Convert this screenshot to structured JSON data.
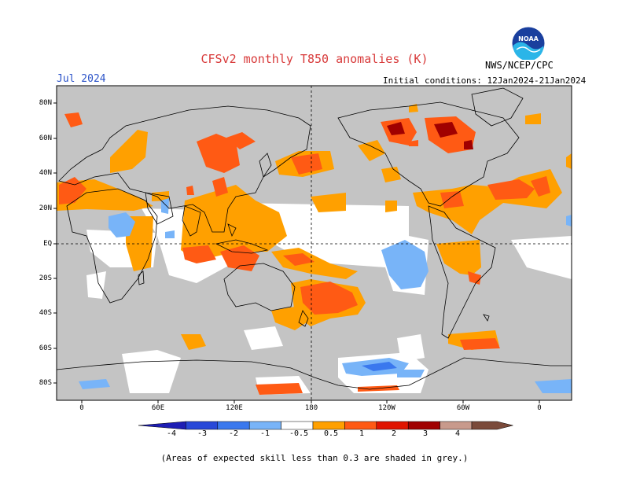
{
  "header": {
    "title": "CFSv2 monthly T850 anomalies (K)",
    "agency": "NWS/NCEP/CPC",
    "month": "Jul 2024",
    "initial_conditions": "Initial conditions: 12Jan2024-21Jan2024",
    "logo_text": "NOAA"
  },
  "map": {
    "lat_labels": [
      "80N",
      "60N",
      "40N",
      "20N",
      "EQ",
      "20S",
      "40S",
      "60S",
      "80S"
    ],
    "lon_labels": [
      "0",
      "60E",
      "120E",
      "180",
      "120W",
      "60W",
      "0"
    ]
  },
  "colorbar": {
    "labels": [
      "-4",
      "-3",
      "-2",
      "-1",
      "-0.5",
      "0.5",
      "1",
      "2",
      "3",
      "4"
    ],
    "colors": [
      "#1e1eb4",
      "#2848d8",
      "#3a78ee",
      "#78b4f8",
      "#ffffff",
      "#ffa000",
      "#ff5a14",
      "#e01400",
      "#a00000",
      "#c89a8c",
      "#7a4a3a"
    ]
  },
  "palette": {
    "grey_mask": "#c4c4c4",
    "coast": "#000000"
  },
  "footnote": "(Areas of expected skill less than 0.3 are shaded in grey.)"
}
